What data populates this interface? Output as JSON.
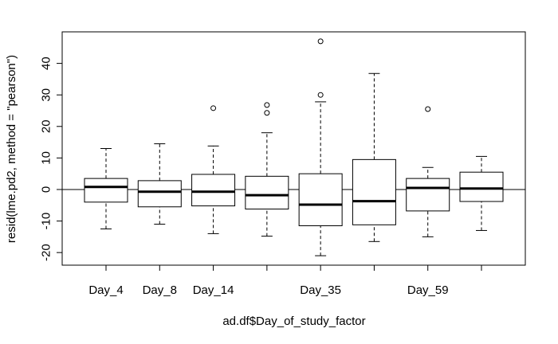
{
  "chart_data": {
    "type": "boxplot",
    "title": "",
    "xlabel": "ad.df$Day_of_study_factor",
    "ylabel": "resid(lme.pd2, method = \"pearson\")",
    "ylim": [
      -24,
      50
    ],
    "yticks": [
      -20,
      -10,
      0,
      10,
      20,
      30,
      40
    ],
    "reference_line": 0,
    "grid": false,
    "categories": [
      "Day_4",
      "Day_8",
      "Day_14",
      "",
      "Day_35",
      "",
      "Day_59",
      ""
    ],
    "boxes": [
      {
        "category": "Day_4",
        "whisker_low": -12.5,
        "q1": -4,
        "median": 0.8,
        "q3": 3.5,
        "whisker_high": 13,
        "outliers": []
      },
      {
        "category": "Day_8",
        "whisker_low": -11,
        "q1": -5.5,
        "median": -0.7,
        "q3": 2.8,
        "whisker_high": 14.5,
        "outliers": []
      },
      {
        "category": "Day_14",
        "whisker_low": -14,
        "q1": -5.2,
        "median": -0.7,
        "q3": 4.8,
        "whisker_high": 13.8,
        "outliers": [
          25.8
        ]
      },
      {
        "category": "",
        "whisker_low": -14.8,
        "q1": -6.2,
        "median": -1.8,
        "q3": 4.2,
        "whisker_high": 18,
        "outliers": [
          26.8,
          24.3
        ]
      },
      {
        "category": "Day_35",
        "whisker_low": -21,
        "q1": -11.5,
        "median": -4.8,
        "q3": 5,
        "whisker_high": 27.8,
        "outliers": [
          47,
          30
        ]
      },
      {
        "category": "",
        "whisker_low": -16.5,
        "q1": -11.2,
        "median": -3.7,
        "q3": 9.5,
        "whisker_high": 36.8,
        "outliers": []
      },
      {
        "category": "Day_59",
        "whisker_low": -15,
        "q1": -6.8,
        "median": 0.5,
        "q3": 3.5,
        "whisker_high": 7,
        "outliers": [
          25.5
        ]
      },
      {
        "category": "",
        "whisker_low": -13,
        "q1": -3.8,
        "median": 0.3,
        "q3": 5.5,
        "whisker_high": 10.5,
        "outliers": []
      }
    ]
  }
}
